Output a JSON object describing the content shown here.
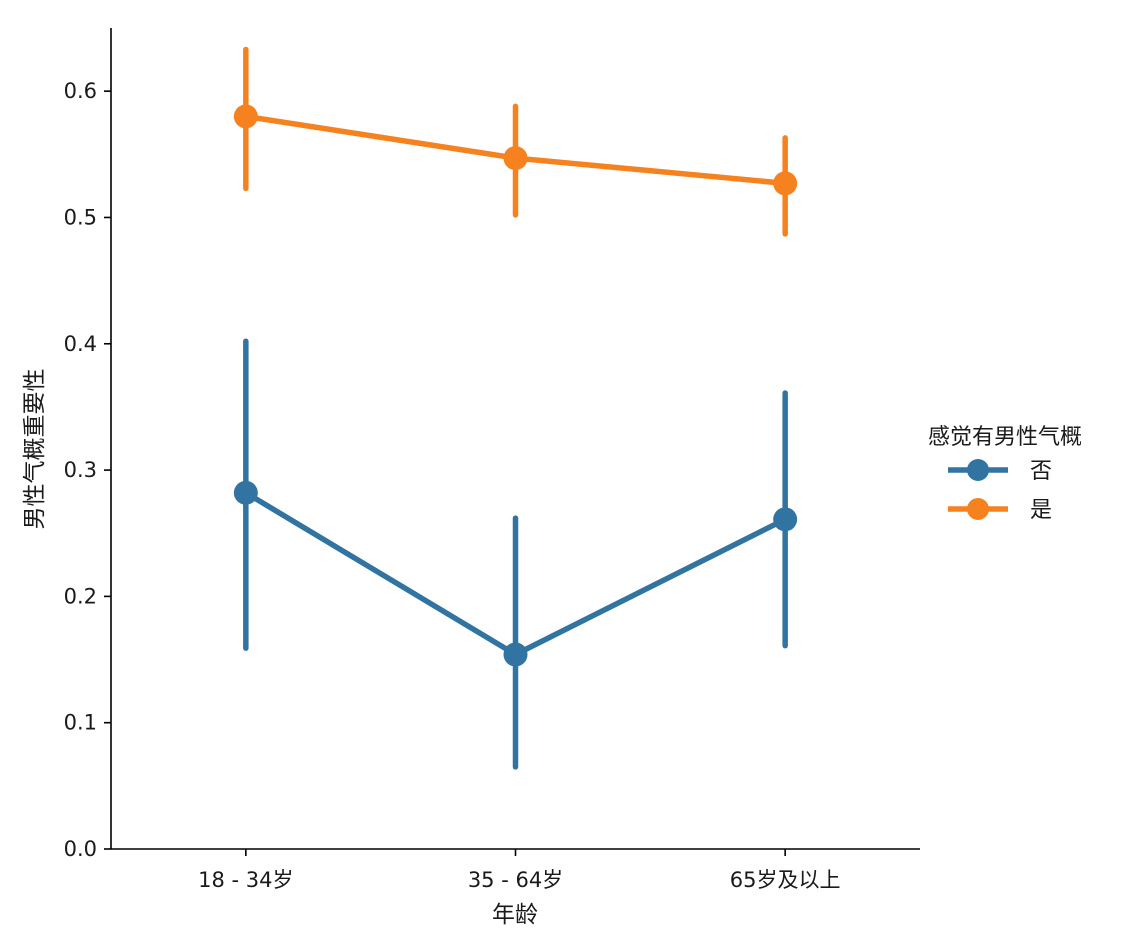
{
  "chart_data": {
    "type": "line",
    "xlabel": "年龄",
    "ylabel": "男性气概重要性",
    "categories": [
      "18 - 34岁",
      "35 - 64岁",
      "65岁及以上"
    ],
    "ylim": [
      0,
      0.65
    ],
    "yticks": [
      "0.0",
      "0.1",
      "0.2",
      "0.3",
      "0.4",
      "0.5",
      "0.6"
    ],
    "grid": false,
    "legend": {
      "title": "感觉有男性气概",
      "placement": "right"
    },
    "series": [
      {
        "name": "否",
        "color": "#3274a1",
        "values": [
          0.282,
          0.154,
          0.261
        ],
        "ci_low": [
          0.159,
          0.065,
          0.161
        ],
        "ci_high": [
          0.402,
          0.262,
          0.361
        ]
      },
      {
        "name": "是",
        "color": "#f5821f",
        "values": [
          0.58,
          0.547,
          0.527
        ],
        "ci_low": [
          0.523,
          0.502,
          0.487
        ],
        "ci_high": [
          0.633,
          0.588,
          0.563
        ]
      }
    ]
  }
}
